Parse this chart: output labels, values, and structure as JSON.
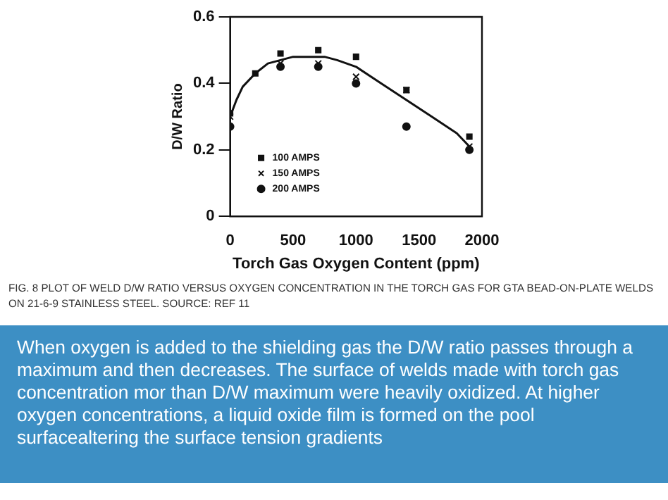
{
  "chart_data": {
    "type": "scatter",
    "xlabel": "Torch Gas Oxygen Content (ppm)",
    "ylabel": "D/W Ratio",
    "xlim": [
      0,
      2000
    ],
    "xticks": [
      0,
      500,
      1000,
      1500,
      2000
    ],
    "ylim": [
      0,
      0.6
    ],
    "yticks": [
      0,
      0.2,
      0.4,
      0.6
    ],
    "grid": false,
    "legend": "bottom left",
    "series": [
      {
        "name": "100 AMPS",
        "color": "#111111",
        "marker": "square",
        "x": [
          0,
          200,
          400,
          700,
          1000,
          1400,
          1900
        ],
        "values": [
          0.31,
          0.43,
          0.49,
          0.5,
          0.48,
          0.38,
          0.24
        ]
      },
      {
        "name": "150 AMPS",
        "color": "#111111",
        "marker": "cross",
        "x": [
          0,
          400,
          700,
          1000,
          1400,
          1900
        ],
        "values": [
          0.3,
          0.46,
          0.46,
          0.42,
          0.38,
          0.21
        ]
      },
      {
        "name": "200 AMPS",
        "color": "#111111",
        "marker": "circle",
        "x": [
          0,
          400,
          700,
          1000,
          1400,
          1900
        ],
        "values": [
          0.27,
          0.45,
          0.45,
          0.4,
          0.27,
          0.2
        ]
      },
      {
        "type": "line",
        "color": "#111111",
        "marker": "none",
        "x": [
          0,
          50,
          100,
          200,
          300,
          400,
          500,
          750,
          850,
          1000,
          1200,
          1400,
          1600,
          1800,
          1900
        ],
        "values": [
          0.3,
          0.35,
          0.39,
          0.43,
          0.46,
          0.47,
          0.48,
          0.48,
          0.47,
          0.45,
          0.4,
          0.35,
          0.3,
          0.25,
          0.21
        ]
      }
    ],
    "annotations": [
      "FIG. 8 PLOT OF WELD D/W RATIO VERSUS OXYGEN CONCENTRATION IN THE TORCH GAS FOR GTA BEAD-ON-PLATE WELDS ON 21-6-9 STAINLESS STEEL. SOURCE: REF 11",
      "When oxygen is added to the shielding gas the D/W ratio passes through a maximum and then decreases. The surface of welds made with torch gas concentration mor than D/W maximum were heavily oxidized. At higher oxygen concentrations, a liquid oxide film is formed on the pool surfacealtering the surface tension gradients"
    ]
  }
}
